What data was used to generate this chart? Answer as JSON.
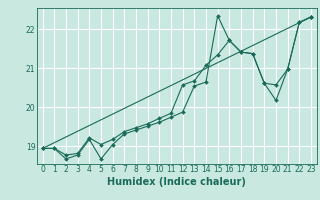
{
  "title": "",
  "xlabel": "Humidex (Indice chaleur)",
  "ylabel": "",
  "bg_color": "#c8e8e0",
  "grid_color": "#b0d8d0",
  "line_color": "#1a6b5a",
  "xlim": [
    -0.5,
    23.5
  ],
  "ylim": [
    18.55,
    22.55
  ],
  "yticks": [
    19,
    20,
    21,
    22
  ],
  "xticks": [
    0,
    1,
    2,
    3,
    4,
    5,
    6,
    7,
    8,
    9,
    10,
    11,
    12,
    13,
    14,
    15,
    16,
    17,
    18,
    19,
    20,
    21,
    22,
    23
  ],
  "line1_x": [
    0,
    1,
    2,
    3,
    4,
    5,
    6,
    7,
    8,
    9,
    10,
    11,
    12,
    13,
    14,
    15,
    16,
    17,
    18,
    19,
    20,
    21,
    22,
    23
  ],
  "line1_y": [
    18.95,
    18.95,
    18.68,
    18.78,
    19.18,
    18.68,
    19.05,
    19.32,
    19.42,
    19.52,
    19.62,
    19.75,
    19.88,
    20.55,
    20.65,
    22.35,
    21.72,
    21.42,
    21.38,
    20.62,
    20.18,
    20.98,
    22.18,
    22.32
  ],
  "line2_x": [
    0,
    1,
    2,
    3,
    4,
    5,
    6,
    7,
    8,
    9,
    10,
    11,
    12,
    13,
    14,
    15,
    16,
    17,
    18,
    19,
    20,
    21,
    22,
    23
  ],
  "line2_y": [
    18.95,
    18.95,
    18.78,
    18.82,
    19.22,
    19.05,
    19.18,
    19.38,
    19.48,
    19.58,
    19.72,
    19.85,
    20.58,
    20.68,
    21.08,
    21.35,
    21.72,
    21.42,
    21.38,
    20.62,
    20.58,
    20.98,
    22.18,
    22.32
  ],
  "line3_x": [
    0,
    23
  ],
  "line3_y": [
    18.95,
    22.32
  ],
  "marker_size": 2.0,
  "line_width": 0.8,
  "xlabel_fontsize": 7,
  "tick_fontsize": 5.5
}
